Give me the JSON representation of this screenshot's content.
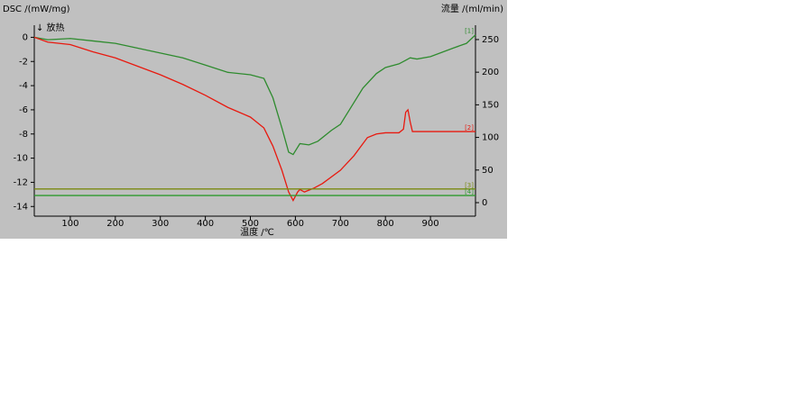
{
  "chart_data": {
    "type": "line",
    "y_label": "DSC /(mW/mg)",
    "y2_label": "流量 /(ml/min)",
    "annotation": "↓ 放热",
    "x_label": "温度 /℃",
    "xlim": [
      20,
      1000
    ],
    "xticks": [
      100,
      200,
      300,
      400,
      500,
      600,
      700,
      800,
      900
    ],
    "ylim": [
      -14.8,
      1
    ],
    "yticks": [
      0,
      -2,
      -4,
      -6,
      -8,
      -10,
      -12,
      -14
    ],
    "y2lim": [
      -20.7,
      272
    ],
    "y2ticks": [
      0,
      50,
      100,
      150,
      200,
      250
    ],
    "series": [
      {
        "name": "[1]",
        "color": "#2e8b2e",
        "x": [
          20,
          50,
          100,
          150,
          200,
          250,
          300,
          350,
          400,
          450,
          500,
          530,
          550,
          570,
          585,
          595,
          610,
          630,
          650,
          680,
          700,
          720,
          750,
          780,
          800,
          830,
          845,
          855,
          870,
          900,
          950,
          980,
          1000
        ],
        "values": [
          0,
          -0.2,
          -0.1,
          -0.3,
          -0.5,
          -0.9,
          -1.3,
          -1.7,
          -2.3,
          -2.9,
          -3.1,
          -3.4,
          -5,
          -7.5,
          -9.5,
          -9.7,
          -8.8,
          -8.9,
          -8.6,
          -7.7,
          -7.2,
          -6,
          -4.2,
          -3,
          -2.5,
          -2.2,
          -1.9,
          -1.7,
          -1.8,
          -1.6,
          -0.9,
          -0.5,
          0.2
        ]
      },
      {
        "name": "[2]",
        "color": "#e8190f",
        "x": [
          20,
          50,
          100,
          150,
          200,
          250,
          300,
          350,
          400,
          450,
          500,
          530,
          550,
          570,
          585,
          595,
          605,
          610,
          620,
          640,
          660,
          700,
          730,
          760,
          780,
          800,
          830,
          840,
          845,
          850,
          855,
          860,
          900,
          950,
          1000
        ],
        "values": [
          0,
          -0.4,
          -0.6,
          -1.2,
          -1.7,
          -2.4,
          -3.1,
          -3.9,
          -4.8,
          -5.8,
          -6.6,
          -7.5,
          -9,
          -11,
          -12.8,
          -13.5,
          -12.8,
          -12.6,
          -12.8,
          -12.5,
          -12.1,
          -11,
          -9.8,
          -8.3,
          -8,
          -7.9,
          -7.9,
          -7.6,
          -6.2,
          -6,
          -7,
          -7.8,
          -7.8,
          -7.8,
          -7.8
        ]
      },
      {
        "name": "[3]",
        "color": "#7a8a10",
        "axis": "y2",
        "x": [
          20,
          1000
        ],
        "values": [
          21,
          21
        ]
      },
      {
        "name": "[4]",
        "color": "#2e9a2e",
        "axis": "y2",
        "x": [
          20,
          1000
        ],
        "values": [
          11,
          11
        ]
      }
    ]
  }
}
